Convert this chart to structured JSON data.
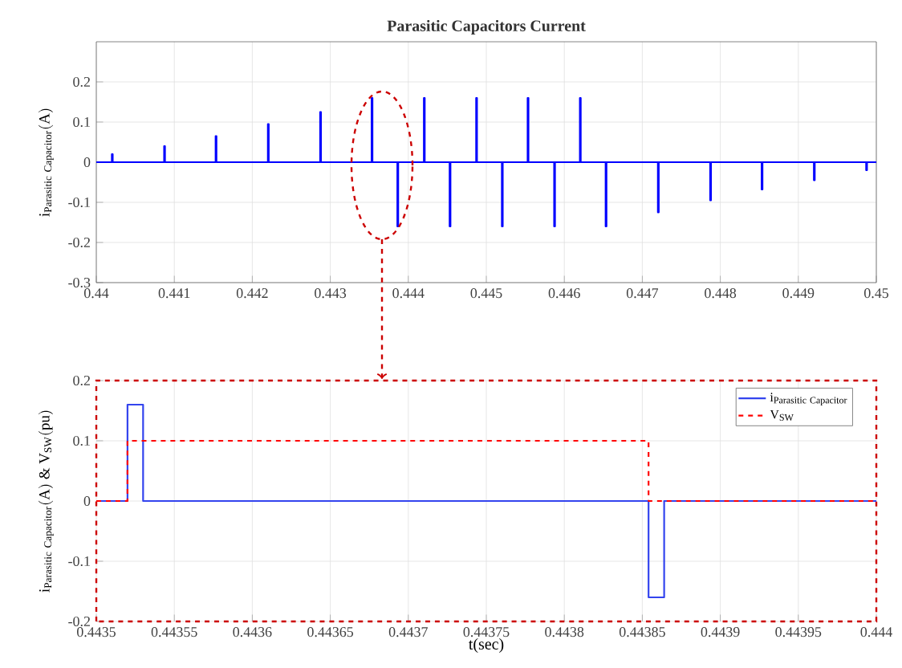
{
  "chart_data": [
    {
      "type": "line",
      "title": "Parasitic Capacitors Current",
      "ylabel": "\\mathrm{i}_{\\mathrm{Parasitic\\ Capacitor}}\\mathrm{(A)}",
      "grid": true,
      "x": [
        0.44,
        0.4402,
        0.4402,
        0.44021,
        0.44021,
        0.44087,
        0.44087,
        0.44088,
        0.44088,
        0.44153,
        0.44153,
        0.44154,
        0.44154,
        0.4422,
        0.4422,
        0.44221,
        0.44221,
        0.44287,
        0.44287,
        0.44288,
        0.44288,
        0.44353,
        0.44353,
        0.44354,
        0.44354,
        0.44386,
        0.44386,
        0.44387,
        0.44387,
        0.4442,
        0.4442,
        0.44421,
        0.44421,
        0.44453,
        0.44453,
        0.44454,
        0.44454,
        0.44487,
        0.44487,
        0.44488,
        0.44488,
        0.4452,
        0.4452,
        0.44521,
        0.44521,
        0.44553,
        0.44553,
        0.44554,
        0.44554,
        0.44587,
        0.44587,
        0.44588,
        0.44588,
        0.4462,
        0.4462,
        0.44621,
        0.44621,
        0.44653,
        0.44653,
        0.44654,
        0.44654,
        0.4472,
        0.4472,
        0.44721,
        0.44721,
        0.44787,
        0.44787,
        0.44788,
        0.44788,
        0.44853,
        0.44853,
        0.44854,
        0.44854,
        0.4492,
        0.4492,
        0.44921,
        0.44921,
        0.44987,
        0.44987,
        0.44988,
        0.44988,
        0.45
      ],
      "values": [
        0,
        0,
        0.02,
        0.02,
        0,
        0,
        0.04,
        0.04,
        0,
        0,
        0.065,
        0.065,
        0,
        0,
        0.095,
        0.095,
        0,
        0,
        0.125,
        0.125,
        0,
        0,
        0.16,
        0.16,
        0,
        0,
        -0.16,
        -0.16,
        0,
        0,
        0.16,
        0.16,
        0,
        0,
        -0.16,
        -0.16,
        0,
        0,
        0.16,
        0.16,
        0,
        0,
        -0.16,
        -0.16,
        0,
        0,
        0.16,
        0.16,
        0,
        0,
        -0.16,
        -0.16,
        0,
        0,
        0.16,
        0.16,
        0,
        0,
        -0.16,
        -0.16,
        0,
        0,
        -0.125,
        -0.125,
        0,
        0,
        -0.095,
        -0.095,
        0,
        0,
        -0.068,
        -0.068,
        0,
        0,
        -0.045,
        -0.045,
        0,
        0,
        -0.02,
        -0.02,
        0,
        0
      ],
      "color": "#0000ff",
      "xlim": [
        0.44,
        0.45
      ],
      "xticks": [
        0.44,
        0.441,
        0.442,
        0.443,
        0.444,
        0.445,
        0.446,
        0.447,
        0.448,
        0.449,
        0.45
      ],
      "ylim": [
        -0.3,
        0.3
      ],
      "yticks": [
        -0.3,
        -0.2,
        -0.1,
        0,
        0.1,
        0.2
      ]
    },
    {
      "type": "line",
      "xlabel": "t(sec)",
      "ylabel": "\\mathrm{i}_{\\mathrm{Parasitic\\ Capacitor}}\\mathrm{(A)\\ \\&\\ V_{SW}(pu)}",
      "grid": true,
      "legend": "top right",
      "series": [
        {
          "name": "\\mathrm{i}_{\\mathrm{Parasitic\\ Capacitor}}",
          "color": "#3344ee",
          "line_style": "solid",
          "x": [
            0.4435,
            0.44352,
            0.44352,
            0.44353,
            0.44353,
            0.443854,
            0.443854,
            0.443864,
            0.443864,
            0.444
          ],
          "values": [
            0,
            0,
            0.16,
            0.16,
            0,
            0,
            -0.16,
            -0.16,
            0,
            0
          ]
        },
        {
          "name": "\\mathrm{V}_{\\mathrm{SW}}",
          "color": "#ff0000",
          "line_style": "dashed",
          "x": [
            0.4435,
            0.44352,
            0.44352,
            0.443854,
            0.443854,
            0.444
          ],
          "values": [
            0,
            0,
            0.1,
            0.1,
            0,
            0
          ]
        }
      ],
      "xlim": [
        0.4435,
        0.444
      ],
      "xticks": [
        0.4435,
        0.44355,
        0.4436,
        0.44365,
        0.4437,
        0.44375,
        0.4438,
        0.44385,
        0.4439,
        0.44395,
        0.444
      ],
      "ylim": [
        -0.2,
        0.2
      ],
      "yticks": [
        -0.2,
        -0.1,
        0,
        0.1,
        0.2
      ]
    }
  ]
}
